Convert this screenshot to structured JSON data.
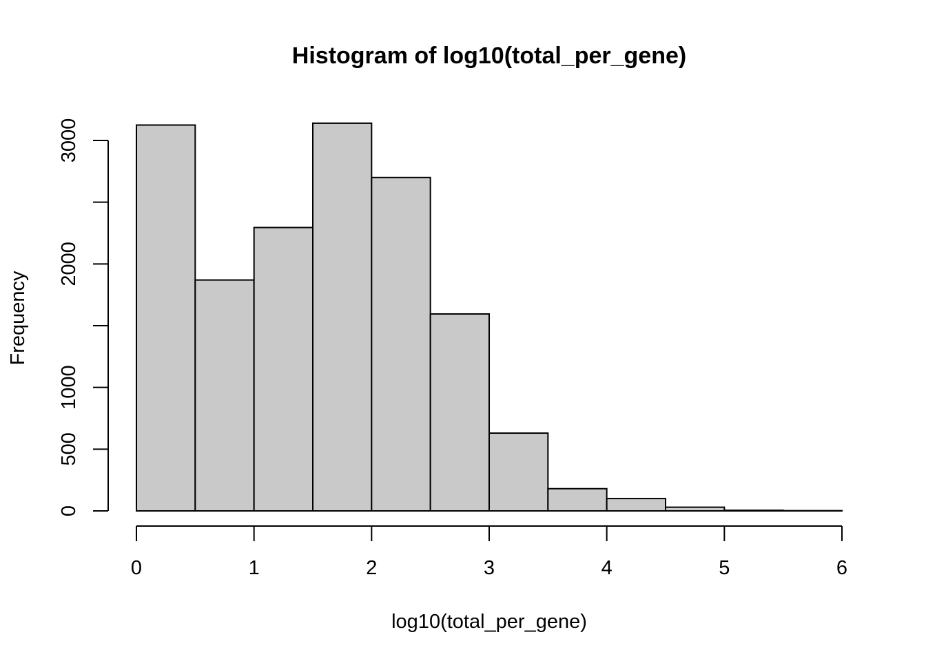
{
  "chart_data": {
    "type": "bar",
    "title": "Histogram of log10(total_per_gene)",
    "xlabel": "log10(total_per_gene)",
    "ylabel": "Frequency",
    "bin_edges": [
      0,
      0.5,
      1,
      1.5,
      2,
      2.5,
      3,
      3.5,
      4,
      4.5,
      5,
      5.5,
      6
    ],
    "values": [
      3125,
      1870,
      2295,
      3140,
      2700,
      1595,
      630,
      180,
      100,
      30,
      5,
      2
    ],
    "xlim": [
      0,
      6
    ],
    "ylim": [
      0,
      3140
    ],
    "x_ticks": [
      0,
      1,
      2,
      3,
      4,
      5,
      6
    ],
    "x_tick_labels": [
      "0",
      "1",
      "2",
      "3",
      "4",
      "5",
      "6"
    ],
    "y_ticks": [
      0,
      500,
      1000,
      1500,
      2000,
      2500,
      3000
    ],
    "y_tick_labels": [
      "0",
      "500",
      "1000",
      "",
      "2000",
      "",
      "3000"
    ],
    "bar_color": "#c9c9c9",
    "grid": false,
    "legend": "none"
  }
}
